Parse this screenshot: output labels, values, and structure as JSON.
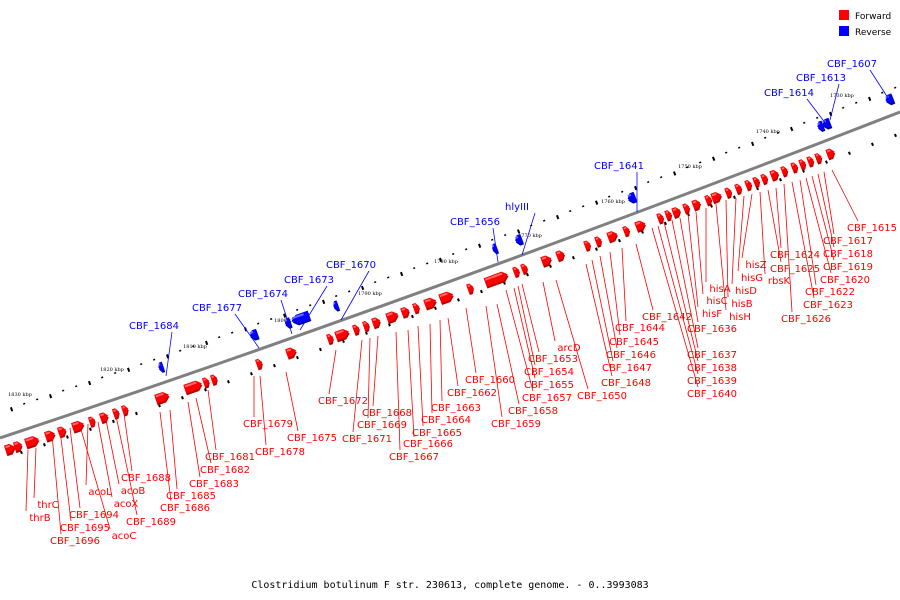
{
  "legend": {
    "items": [
      {
        "label": "Forward",
        "color": "#ff0000"
      },
      {
        "label": "Reverse",
        "color": "#0000ff"
      }
    ]
  },
  "caption": "Clostridium botulinum F str. 230613, complete genome. - 0..3993083",
  "colors": {
    "forward": "#ff0000",
    "reverse": "#0000ff",
    "backbone": "#808080"
  },
  "ticks": [
    {
      "label": "1730 kbp"
    },
    {
      "label": "1740 kbp"
    },
    {
      "label": "1750 kbp"
    },
    {
      "label": "1760 kbp"
    },
    {
      "label": "1770 kbp"
    },
    {
      "label": "1780 kbp"
    },
    {
      "label": "1790 kbp"
    },
    {
      "label": "1800 kbp"
    },
    {
      "label": "1810 kbp"
    },
    {
      "label": "1820 kbp"
    },
    {
      "label": "1830 kbp"
    }
  ],
  "reverse_labels": [
    {
      "text": "CBF_1607"
    },
    {
      "text": "CBF_1613"
    },
    {
      "text": "CBF_1614"
    },
    {
      "text": "CBF_1641"
    },
    {
      "text": "hlyIII"
    },
    {
      "text": "CBF_1656"
    },
    {
      "text": "CBF_1670"
    },
    {
      "text": "CBF_1673"
    },
    {
      "text": "CBF_1674"
    },
    {
      "text": "CBF_1677"
    },
    {
      "text": "CBF_1684"
    }
  ],
  "forward_labels": [
    {
      "text": "CBF_1615"
    },
    {
      "text": "CBF_1617"
    },
    {
      "text": "CBF_1618"
    },
    {
      "text": "CBF_1619"
    },
    {
      "text": "CBF_1620"
    },
    {
      "text": "CBF_1622"
    },
    {
      "text": "CBF_1623"
    },
    {
      "text": "CBF_1626"
    },
    {
      "text": "CBF_1624"
    },
    {
      "text": "CBF_1625"
    },
    {
      "text": "rbsK"
    },
    {
      "text": "hisZ"
    },
    {
      "text": "hisG"
    },
    {
      "text": "hisD"
    },
    {
      "text": "hisB"
    },
    {
      "text": "hisH"
    },
    {
      "text": "hisA"
    },
    {
      "text": "hisC"
    },
    {
      "text": "hisF"
    },
    {
      "text": "CBF_1636"
    },
    {
      "text": "CBF_1637"
    },
    {
      "text": "CBF_1638"
    },
    {
      "text": "CBF_1639"
    },
    {
      "text": "CBF_1640"
    },
    {
      "text": "CBF_1642"
    },
    {
      "text": "CBF_1644"
    },
    {
      "text": "CBF_1645"
    },
    {
      "text": "CBF_1646"
    },
    {
      "text": "CBF_1647"
    },
    {
      "text": "CBF_1648"
    },
    {
      "text": "CBF_1650"
    },
    {
      "text": "arcD"
    },
    {
      "text": "CBF_1653"
    },
    {
      "text": "CBF_1654"
    },
    {
      "text": "CBF_1655"
    },
    {
      "text": "CBF_1657"
    },
    {
      "text": "CBF_1658"
    },
    {
      "text": "CBF_1659"
    },
    {
      "text": "CBF_1660"
    },
    {
      "text": "CBF_1662"
    },
    {
      "text": "CBF_1663"
    },
    {
      "text": "CBF_1664"
    },
    {
      "text": "CBF_1665"
    },
    {
      "text": "CBF_1666"
    },
    {
      "text": "CBF_1667"
    },
    {
      "text": "CBF_1668"
    },
    {
      "text": "CBF_1669"
    },
    {
      "text": "CBF_1671"
    },
    {
      "text": "CBF_1672"
    },
    {
      "text": "CBF_1675"
    },
    {
      "text": "CBF_1678"
    },
    {
      "text": "CBF_1679"
    },
    {
      "text": "CBF_1681"
    },
    {
      "text": "CBF_1682"
    },
    {
      "text": "CBF_1683"
    },
    {
      "text": "CBF_1685"
    },
    {
      "text": "CBF_1686"
    },
    {
      "text": "CBF_1688"
    },
    {
      "text": "CBF_1689"
    },
    {
      "text": "acoB"
    },
    {
      "text": "acoX"
    },
    {
      "text": "acoL"
    },
    {
      "text": "acoC"
    },
    {
      "text": "CBF_1694"
    },
    {
      "text": "CBF_1695"
    },
    {
      "text": "CBF_1696"
    },
    {
      "text": "thrC"
    },
    {
      "text": "thrB"
    }
  ]
}
